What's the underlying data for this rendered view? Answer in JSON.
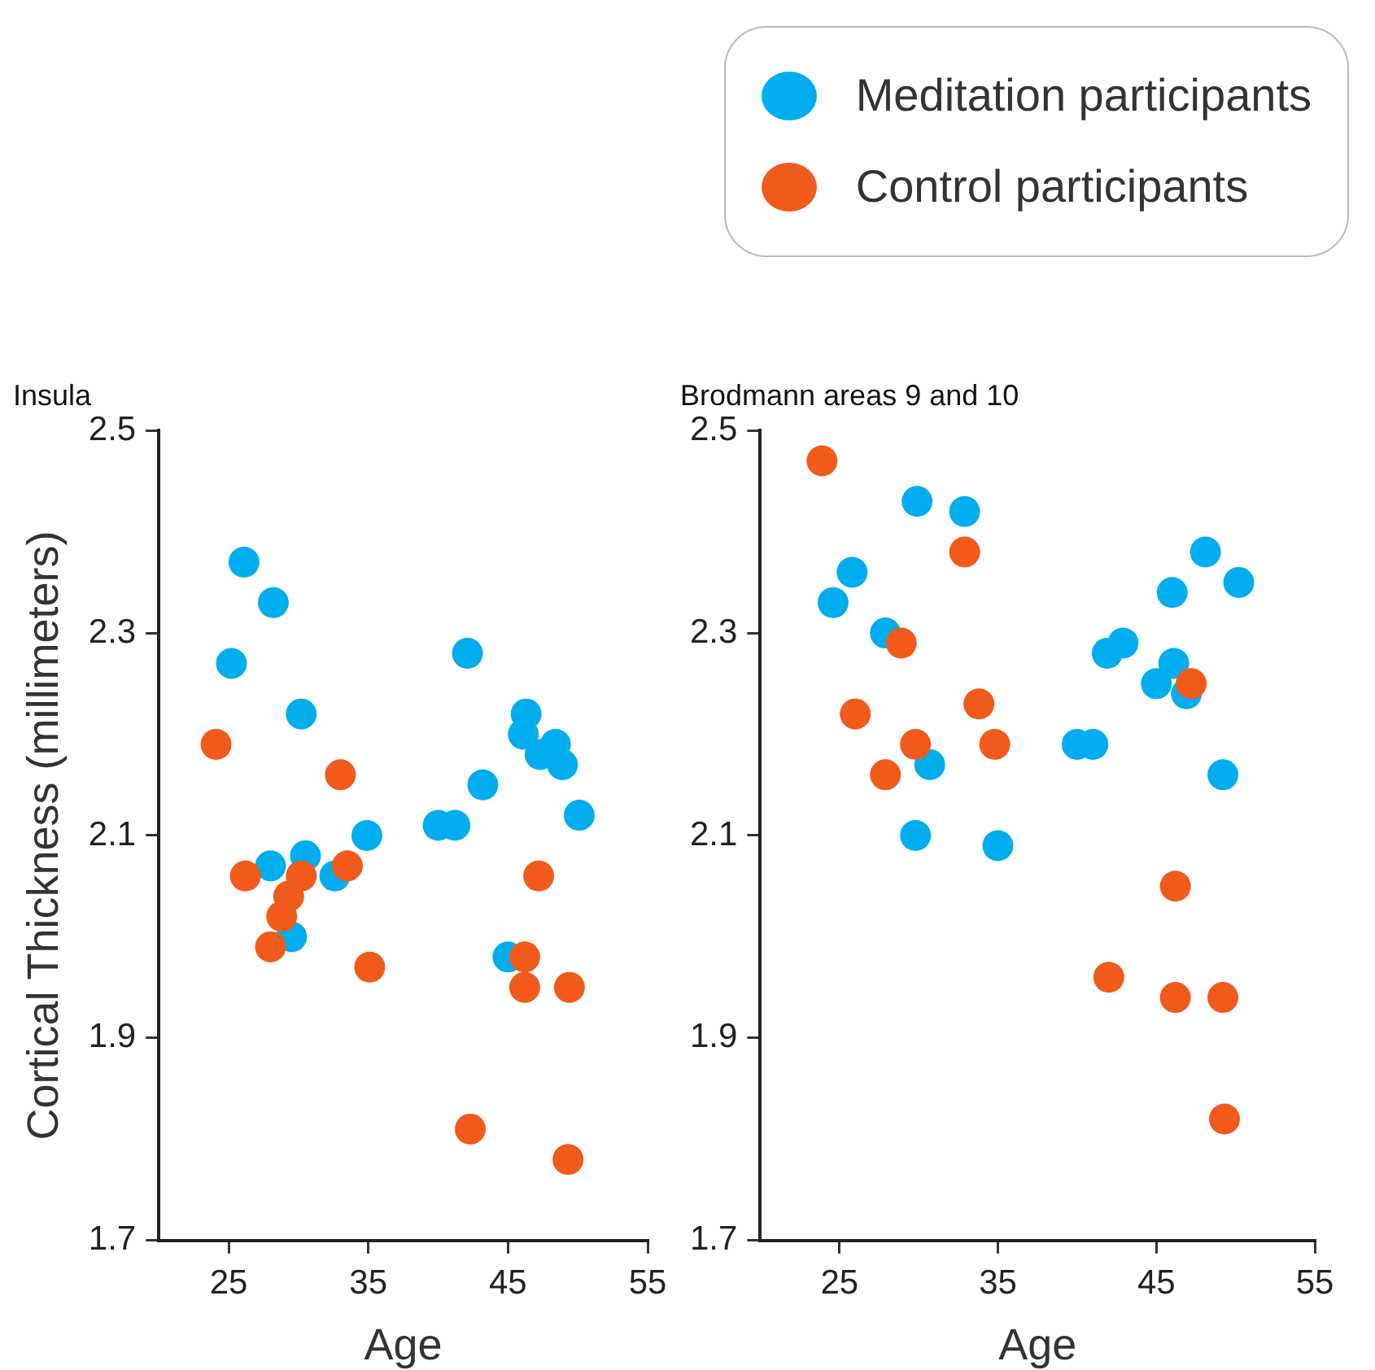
{
  "chart_data": [
    {
      "type": "scatter",
      "title": "Insula",
      "xlabel": "Age",
      "ylabel": "Cortical Thickness (millimeters)",
      "xlim": [
        20,
        55
      ],
      "xticks": [
        25,
        35,
        45,
        55
      ],
      "ylim": [
        1.7,
        2.5
      ],
      "yticks": [
        1.7,
        1.9,
        2.1,
        2.3,
        2.5
      ],
      "grid": false,
      "legend": "top right",
      "marker": "circle",
      "series": [
        {
          "name": "Meditation participants",
          "color": "#00aeef",
          "x": [
            26.1,
            28.2,
            25.2,
            30.2,
            42.1,
            46.3,
            46.1,
            48.4,
            47.3,
            48.9,
            43.2,
            50.1,
            40.0,
            41.2,
            34.9,
            30.5,
            28.0,
            32.6,
            29.5,
            45.0
          ],
          "values": [
            2.37,
            2.33,
            2.27,
            2.22,
            2.28,
            2.22,
            2.2,
            2.19,
            2.18,
            2.17,
            2.15,
            2.12,
            2.11,
            2.11,
            2.1,
            2.08,
            2.07,
            2.06,
            2.0,
            1.98
          ]
        },
        {
          "name": "Control participants",
          "color": "#f15a1a",
          "x": [
            24.1,
            33.0,
            26.2,
            30.2,
            33.5,
            29.3,
            28.8,
            28.0,
            35.1,
            47.2,
            46.2,
            46.2,
            49.4,
            42.3,
            49.3
          ],
          "values": [
            2.19,
            2.16,
            2.06,
            2.06,
            2.07,
            2.04,
            2.02,
            1.99,
            1.97,
            2.06,
            1.98,
            1.95,
            1.95,
            1.81,
            1.78
          ]
        }
      ]
    },
    {
      "type": "scatter",
      "title": "Brodmann areas 9 and 10",
      "xlabel": "Age",
      "xlim": [
        20,
        55
      ],
      "xticks": [
        25,
        35,
        45,
        55
      ],
      "ylim": [
        1.7,
        2.5
      ],
      "yticks": [
        1.7,
        1.9,
        2.1,
        2.3,
        2.5
      ],
      "grid": false,
      "marker": "circle",
      "series": [
        {
          "color": "#00aeef",
          "x": [
            29.9,
            32.9,
            25.8,
            24.6,
            27.9,
            46.0,
            48.1,
            50.2,
            42.9,
            41.9,
            46.1,
            45.0,
            46.9,
            40.0,
            41.0,
            30.7,
            49.2,
            29.8,
            35.0
          ],
          "values": [
            2.43,
            2.42,
            2.36,
            2.33,
            2.3,
            2.34,
            2.38,
            2.35,
            2.29,
            2.28,
            2.27,
            2.25,
            2.24,
            2.19,
            2.19,
            2.17,
            2.16,
            2.1,
            2.09
          ]
        },
        {
          "color": "#f15a1a",
          "x": [
            23.9,
            32.9,
            28.9,
            26.0,
            33.8,
            34.8,
            29.8,
            27.9,
            47.2,
            46.2,
            42.0,
            46.2,
            49.2,
            49.3
          ],
          "values": [
            2.47,
            2.38,
            2.29,
            2.22,
            2.23,
            2.19,
            2.19,
            2.16,
            2.25,
            2.05,
            1.96,
            1.94,
            1.94,
            1.82
          ]
        }
      ]
    }
  ]
}
